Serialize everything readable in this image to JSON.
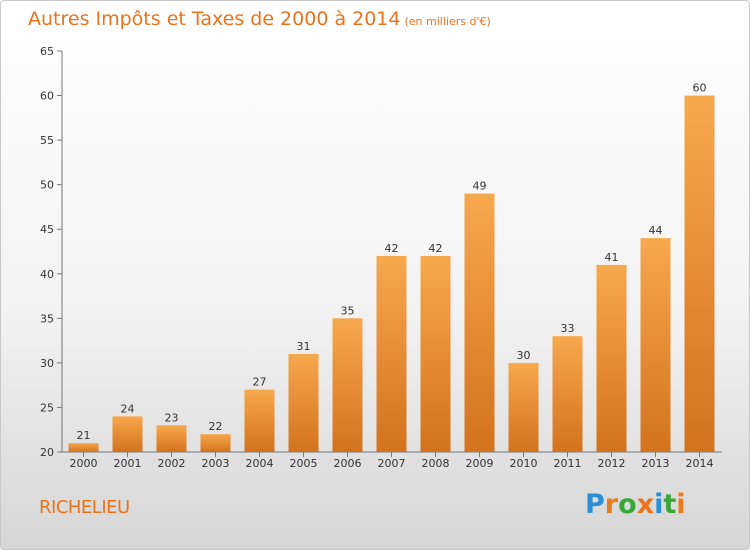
{
  "header": {
    "title": "Autres Impôts et Taxes de 2000 à 2014",
    "unit": "(en milliers d'€)"
  },
  "commune": "RICHELIEU",
  "logo": {
    "text": "Proxiti",
    "letter_colors": [
      "#2a8fd6",
      "#e87c1e",
      "#3aa839",
      "#e8741e",
      "#2a8fd6",
      "#3aa839",
      "#e87c1e"
    ]
  },
  "colors": {
    "bar_light": "#f7a84d",
    "bar_dark": "#d4721d",
    "title": "#e8741e"
  },
  "chart_data": {
    "type": "bar",
    "title": "Autres Impôts et Taxes de 2000 à 2014",
    "subtitle": "(en milliers d'€)",
    "categories": [
      "2000",
      "2001",
      "2002",
      "2003",
      "2004",
      "2005",
      "2006",
      "2007",
      "2008",
      "2009",
      "2010",
      "2011",
      "2012",
      "2013",
      "2014"
    ],
    "values": [
      21,
      24,
      23,
      22,
      27,
      31,
      35,
      42,
      42,
      49,
      30,
      33,
      41,
      44,
      60
    ],
    "ylim": [
      20,
      65
    ],
    "yticks": [
      20,
      25,
      30,
      35,
      40,
      45,
      50,
      55,
      60,
      65
    ],
    "grid": false,
    "data_labels": true
  }
}
